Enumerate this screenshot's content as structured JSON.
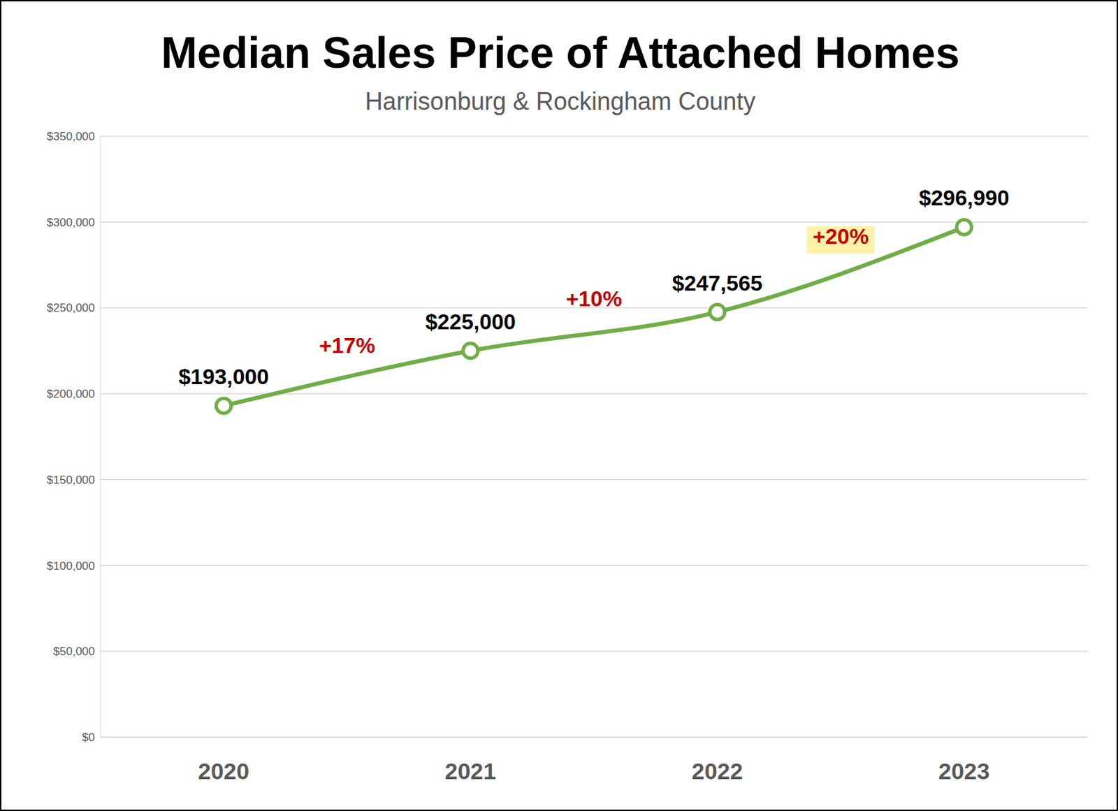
{
  "chart_data": {
    "type": "line",
    "title": "Median Sales Price of Attached Homes",
    "subtitle": "Harrisonburg & Rockingham County",
    "categories": [
      "2020",
      "2021",
      "2022",
      "2023"
    ],
    "values": [
      193000,
      225000,
      247565,
      296990
    ],
    "value_labels": [
      "$193,000",
      "$225,000",
      "$247,565",
      "$296,990"
    ],
    "data_labels": true,
    "annotations": [
      "+17%",
      "+10%",
      "+20%"
    ],
    "color": "#70ad47",
    "marker": "circle",
    "ylim": [
      0,
      350000
    ],
    "yticks": [
      {
        "value": 0,
        "label": "$0"
      },
      {
        "value": 50000,
        "label": "$50,000"
      },
      {
        "value": 100000,
        "label": "$100,000"
      },
      {
        "value": 150000,
        "label": "$150,000"
      },
      {
        "value": 200000,
        "label": "$200,000"
      },
      {
        "value": 250000,
        "label": "$250,000"
      },
      {
        "value": 300000,
        "label": "$300,000"
      },
      {
        "value": 350000,
        "label": "$350,000"
      }
    ],
    "grid": true
  }
}
